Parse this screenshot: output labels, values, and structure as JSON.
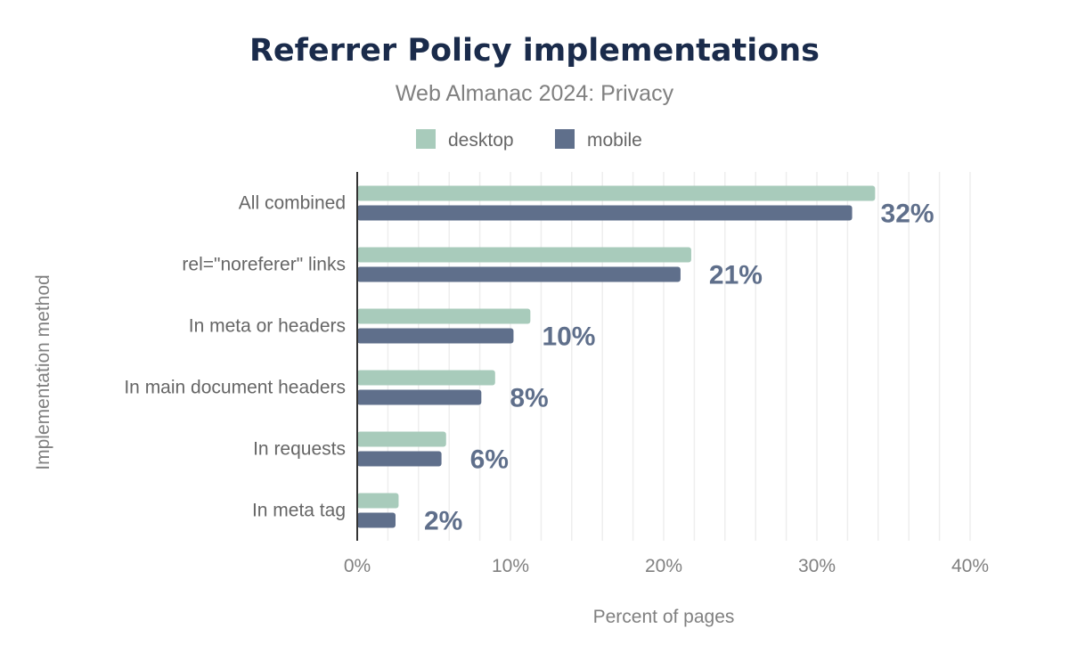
{
  "chart_data": {
    "type": "bar",
    "orientation": "horizontal",
    "title": "Referrer Policy implementations",
    "subtitle": "Web Almanac 2024: Privacy",
    "xlabel": "Percent of pages",
    "ylabel": "Implementation method",
    "categories": [
      "All combined",
      "rel=\"noreferer\" links",
      "In meta or headers",
      "In main document headers",
      "In requests",
      "In meta tag"
    ],
    "series": [
      {
        "name": "desktop",
        "color": "#a8cbbb",
        "values": [
          33.8,
          21.8,
          11.3,
          9.0,
          5.8,
          2.7
        ]
      },
      {
        "name": "mobile",
        "color": "#5f6f8b",
        "values": [
          32.3,
          21.1,
          10.2,
          8.1,
          5.5,
          2.5
        ]
      }
    ],
    "data_labels": [
      "32%",
      "21%",
      "10%",
      "8%",
      "6%",
      "2%"
    ],
    "xlim": [
      0,
      40
    ],
    "xticks": [
      "0%",
      "10%",
      "20%",
      "30%",
      "40%"
    ],
    "grid": true,
    "legend_position": "top"
  }
}
